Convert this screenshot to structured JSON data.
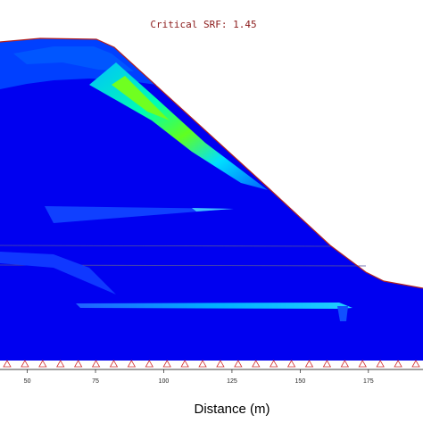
{
  "chart_data": {
    "type": "heatmap",
    "title": "Critical SRF: 1.45",
    "xlabel": "Distance (m)",
    "ylabel": "",
    "x_ticks": [
      50,
      75,
      100,
      125,
      150,
      175
    ],
    "xlim": [
      40,
      195
    ],
    "grid": false,
    "legend": "none",
    "colormap": [
      "#0000ff",
      "#0050ff",
      "#00a0ff",
      "#00ffc0",
      "#30ff40",
      "#a0ff00"
    ],
    "slope_surface_color": "#b22222",
    "boundary_marker_color": "#d03030",
    "boundary_marker_count": 24
  }
}
